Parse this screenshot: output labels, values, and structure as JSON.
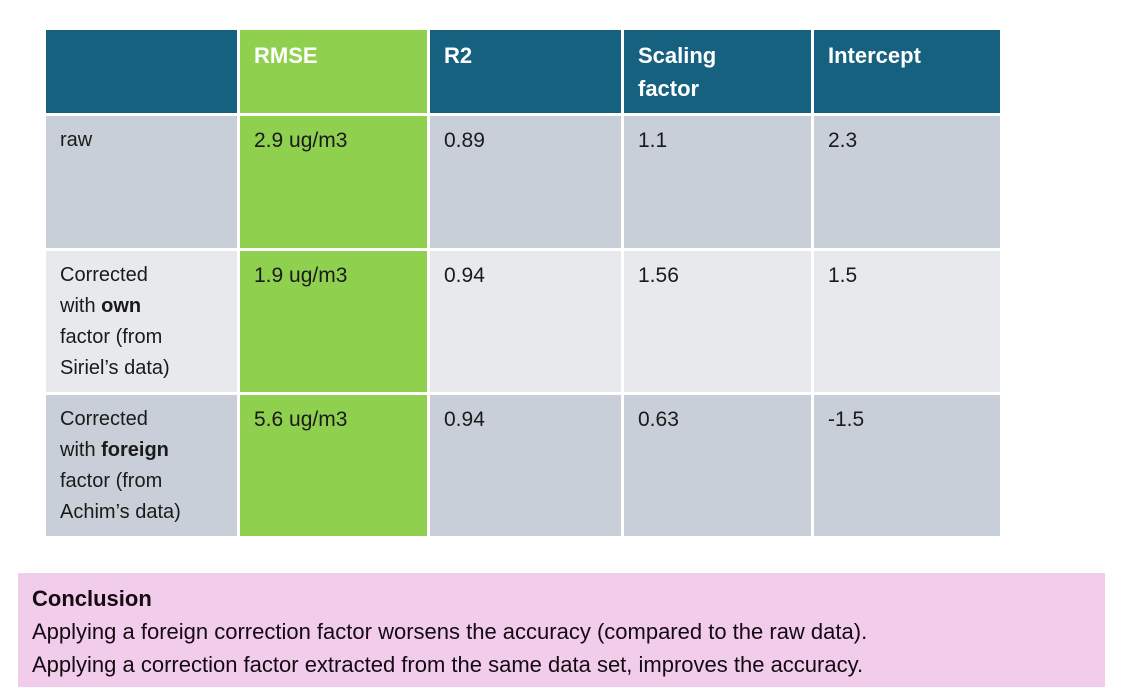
{
  "table": {
    "columns": [
      "",
      "RMSE",
      "R2",
      "Scaling\nfactor",
      "Intercept"
    ],
    "rows": [
      {
        "label_prefix": "raw",
        "label_bold": "",
        "label_suffix": "",
        "rmse": "2.9 ug/m3",
        "r2": "0.89",
        "scaling_factor": "1.1",
        "intercept": "2.3"
      },
      {
        "label_prefix": "Corrected\nwith ",
        "label_bold": "own",
        "label_suffix": "\nfactor (from\nSiriel’s data)",
        "rmse": "1.9 ug/m3",
        "r2": "0.94",
        "scaling_factor": "1.56",
        "intercept": "1.5"
      },
      {
        "label_prefix": "Corrected\nwith ",
        "label_bold": "foreign",
        "label_suffix": "\nfactor (from\nAchim’s data)",
        "rmse": "5.6 ug/m3",
        "r2": "0.94",
        "scaling_factor": "0.63",
        "intercept": "-1.5"
      }
    ]
  },
  "conclusion": {
    "title": "Conclusion",
    "line1": "Applying a foreign correction factor worsens the accuracy (compared to the raw data).",
    "line2": "Applying a correction factor extracted from the same data set, improves the accuracy."
  },
  "colors": {
    "header_teal": "#16617f",
    "accent_green": "#8fd04f",
    "row_dark_gray": "#c9cfd8",
    "row_light_gray": "#e7e9ec",
    "conclusion_pink": "#f2cceb",
    "header_text": "#ffffff",
    "body_text": "#1a1a1a"
  },
  "chart_data": {
    "type": "table",
    "title": "",
    "columns": [
      "",
      "RMSE",
      "R2",
      "Scaling factor",
      "Intercept"
    ],
    "rows": [
      [
        "raw",
        "2.9 ug/m3",
        0.89,
        1.1,
        2.3
      ],
      [
        "Corrected with own factor (from Siriel's data)",
        "1.9 ug/m3",
        0.94,
        1.56,
        1.5
      ],
      [
        "Corrected with foreign factor (from Achim's data)",
        "5.6 ug/m3",
        0.94,
        0.63,
        -1.5
      ]
    ]
  }
}
